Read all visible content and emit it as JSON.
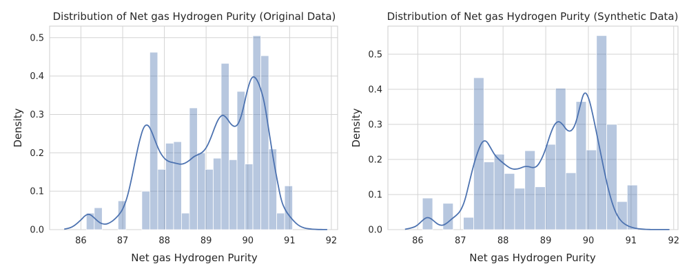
{
  "chart_data": [
    {
      "type": "histogram",
      "title": "Distribution of Net gas Hydrogen Purity (Original Data)",
      "xlabel": "Net gas Hydrogen Purity",
      "ylabel": "Density",
      "xlim": [
        85.25,
        92.15
      ],
      "ylim": [
        0,
        0.53
      ],
      "xticks": [
        86,
        87,
        88,
        89,
        90,
        91,
        92
      ],
      "yticks": [
        0.0,
        0.1,
        0.2,
        0.3,
        0.4,
        0.5
      ],
      "ytick_labels": [
        "0.0",
        "0.1",
        "0.2",
        "0.3",
        "0.4",
        "0.5"
      ],
      "grid": true,
      "bar_color": "#4c72b0",
      "bar_opacity": 0.4,
      "line_color": "#4c72b0",
      "bins": [
        {
          "x0": 86.13,
          "x1": 86.32,
          "value": 0.043
        },
        {
          "x0": 86.32,
          "x1": 86.51,
          "value": 0.057
        },
        {
          "x0": 86.51,
          "x1": 86.7,
          "value": 0.0
        },
        {
          "x0": 86.7,
          "x1": 86.89,
          "value": 0.0
        },
        {
          "x0": 86.89,
          "x1": 87.08,
          "value": 0.075
        },
        {
          "x0": 87.08,
          "x1": 87.27,
          "value": 0.0
        },
        {
          "x0": 87.27,
          "x1": 87.46,
          "value": 0.0
        },
        {
          "x0": 87.46,
          "x1": 87.65,
          "value": 0.1
        },
        {
          "x0": 87.65,
          "x1": 87.84,
          "value": 0.462
        },
        {
          "x0": 87.84,
          "x1": 88.03,
          "value": 0.157
        },
        {
          "x0": 88.03,
          "x1": 88.22,
          "value": 0.225
        },
        {
          "x0": 88.22,
          "x1": 88.41,
          "value": 0.229
        },
        {
          "x0": 88.41,
          "x1": 88.6,
          "value": 0.043
        },
        {
          "x0": 88.6,
          "x1": 88.79,
          "value": 0.317
        },
        {
          "x0": 88.79,
          "x1": 88.98,
          "value": 0.2
        },
        {
          "x0": 88.98,
          "x1": 89.17,
          "value": 0.157
        },
        {
          "x0": 89.17,
          "x1": 89.36,
          "value": 0.186
        },
        {
          "x0": 89.36,
          "x1": 89.55,
          "value": 0.433
        },
        {
          "x0": 89.55,
          "x1": 89.74,
          "value": 0.182
        },
        {
          "x0": 89.74,
          "x1": 89.93,
          "value": 0.36
        },
        {
          "x0": 89.93,
          "x1": 90.12,
          "value": 0.171
        },
        {
          "x0": 90.12,
          "x1": 90.31,
          "value": 0.505
        },
        {
          "x0": 90.31,
          "x1": 90.5,
          "value": 0.453
        },
        {
          "x0": 90.5,
          "x1": 90.69,
          "value": 0.21
        },
        {
          "x0": 90.69,
          "x1": 90.88,
          "value": 0.043
        },
        {
          "x0": 90.88,
          "x1": 91.07,
          "value": 0.114
        }
      ],
      "kde": {
        "x": [
          85.6,
          85.8,
          86.0,
          86.1,
          86.2,
          86.3,
          86.4,
          86.5,
          86.6,
          86.7,
          86.8,
          86.9,
          87.0,
          87.1,
          87.2,
          87.3,
          87.4,
          87.5,
          87.6,
          87.7,
          87.8,
          87.9,
          88.0,
          88.1,
          88.2,
          88.3,
          88.4,
          88.5,
          88.6,
          88.7,
          88.8,
          88.9,
          89.0,
          89.1,
          89.2,
          89.3,
          89.4,
          89.5,
          89.6,
          89.7,
          89.8,
          89.9,
          90.0,
          90.1,
          90.2,
          90.3,
          90.4,
          90.5,
          90.6,
          90.7,
          90.8,
          90.9,
          91.0,
          91.1,
          91.2,
          91.3,
          91.4,
          91.5,
          91.6,
          91.7,
          91.8,
          91.9
        ],
        "y": [
          0.001,
          0.006,
          0.025,
          0.037,
          0.041,
          0.033,
          0.022,
          0.015,
          0.014,
          0.018,
          0.026,
          0.037,
          0.052,
          0.08,
          0.125,
          0.18,
          0.23,
          0.268,
          0.275,
          0.255,
          0.225,
          0.2,
          0.185,
          0.177,
          0.175,
          0.172,
          0.17,
          0.173,
          0.18,
          0.19,
          0.195,
          0.2,
          0.212,
          0.235,
          0.265,
          0.29,
          0.3,
          0.29,
          0.273,
          0.267,
          0.28,
          0.32,
          0.37,
          0.4,
          0.395,
          0.37,
          0.33,
          0.26,
          0.19,
          0.13,
          0.075,
          0.05,
          0.035,
          0.022,
          0.012,
          0.006,
          0.003,
          0.0015,
          0.0008,
          0.0004,
          0.0002,
          0.0001
        ]
      }
    },
    {
      "type": "histogram",
      "title": "Distribution of Net gas Hydrogen Purity (Synthetic Data)",
      "xlabel": "Net gas Hydrogen Purity",
      "ylabel": "Density",
      "xlim": [
        85.3,
        92.1
      ],
      "ylim": [
        0,
        0.58
      ],
      "xticks": [
        86,
        87,
        88,
        89,
        90,
        91,
        92
      ],
      "yticks": [
        0.0,
        0.1,
        0.2,
        0.3,
        0.4,
        0.5
      ],
      "ytick_labels": [
        "0.0",
        "0.1",
        "0.2",
        "0.3",
        "0.4",
        "0.5"
      ],
      "grid": true,
      "bar_color": "#4c72b0",
      "bar_opacity": 0.4,
      "line_color": "#4c72b0",
      "bins": [
        {
          "x0": 86.11,
          "x1": 86.35,
          "value": 0.09
        },
        {
          "x0": 86.35,
          "x1": 86.59,
          "value": 0.0
        },
        {
          "x0": 86.59,
          "x1": 86.83,
          "value": 0.075
        },
        {
          "x0": 86.83,
          "x1": 87.07,
          "value": 0.0
        },
        {
          "x0": 87.07,
          "x1": 87.31,
          "value": 0.035
        },
        {
          "x0": 87.31,
          "x1": 87.55,
          "value": 0.433
        },
        {
          "x0": 87.55,
          "x1": 87.79,
          "value": 0.193
        },
        {
          "x0": 87.79,
          "x1": 88.03,
          "value": 0.215
        },
        {
          "x0": 88.03,
          "x1": 88.27,
          "value": 0.16
        },
        {
          "x0": 88.27,
          "x1": 88.51,
          "value": 0.118
        },
        {
          "x0": 88.51,
          "x1": 88.75,
          "value": 0.225
        },
        {
          "x0": 88.75,
          "x1": 88.99,
          "value": 0.122
        },
        {
          "x0": 88.99,
          "x1": 89.23,
          "value": 0.243
        },
        {
          "x0": 89.23,
          "x1": 89.47,
          "value": 0.403
        },
        {
          "x0": 89.47,
          "x1": 89.71,
          "value": 0.162
        },
        {
          "x0": 89.71,
          "x1": 89.95,
          "value": 0.365
        },
        {
          "x0": 89.95,
          "x1": 90.19,
          "value": 0.227
        },
        {
          "x0": 90.19,
          "x1": 90.43,
          "value": 0.553
        },
        {
          "x0": 90.43,
          "x1": 90.67,
          "value": 0.3
        },
        {
          "x0": 90.67,
          "x1": 90.91,
          "value": 0.08
        },
        {
          "x0": 90.91,
          "x1": 91.15,
          "value": 0.127
        }
      ],
      "kde": {
        "x": [
          85.7,
          85.9,
          86.0,
          86.1,
          86.2,
          86.3,
          86.4,
          86.5,
          86.6,
          86.7,
          86.8,
          86.9,
          87.0,
          87.1,
          87.2,
          87.3,
          87.4,
          87.5,
          87.6,
          87.7,
          87.8,
          87.9,
          88.0,
          88.1,
          88.2,
          88.3,
          88.4,
          88.5,
          88.6,
          88.7,
          88.8,
          88.9,
          89.0,
          89.1,
          89.2,
          89.3,
          89.4,
          89.5,
          89.6,
          89.7,
          89.8,
          89.9,
          90.0,
          90.1,
          90.2,
          90.3,
          90.4,
          90.5,
          90.6,
          90.7,
          90.8,
          90.9,
          91.0,
          91.1,
          91.2,
          91.3,
          91.4,
          91.5,
          91.6,
          91.7,
          91.8,
          91.9
        ],
        "y": [
          0.001,
          0.006,
          0.013,
          0.025,
          0.035,
          0.033,
          0.022,
          0.013,
          0.012,
          0.02,
          0.031,
          0.04,
          0.053,
          0.08,
          0.13,
          0.18,
          0.22,
          0.25,
          0.255,
          0.235,
          0.213,
          0.2,
          0.19,
          0.18,
          0.173,
          0.172,
          0.175,
          0.18,
          0.18,
          0.176,
          0.18,
          0.2,
          0.23,
          0.27,
          0.3,
          0.31,
          0.3,
          0.282,
          0.28,
          0.3,
          0.35,
          0.395,
          0.38,
          0.33,
          0.27,
          0.21,
          0.15,
          0.1,
          0.06,
          0.035,
          0.02,
          0.012,
          0.007,
          0.004,
          0.002,
          0.001,
          0.0005,
          0.0003,
          0.0002,
          0.0001,
          0.0001,
          0.0001
        ]
      }
    }
  ]
}
